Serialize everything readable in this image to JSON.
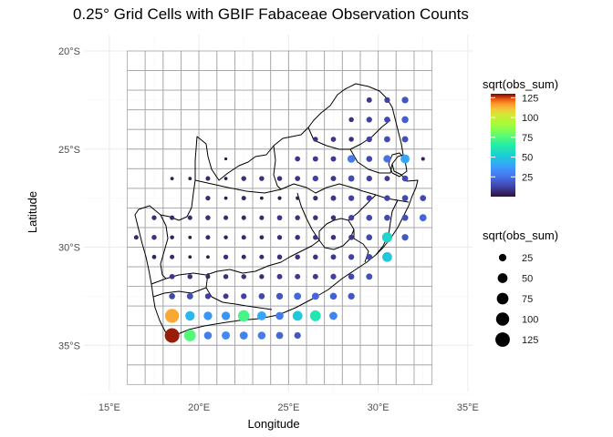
{
  "chart_title": "0.25° Grid Cells with GBIF Fabaceae Observation Counts",
  "chart_data": {
    "type": "map-bubble",
    "title": "0.25° Grid Cells with GBIF Fabaceae Observation Counts",
    "xlabel": "Longitude",
    "ylabel": "Latitude",
    "x_ticks": [
      "15°E",
      "20°E",
      "25°E",
      "30°E",
      "35°E"
    ],
    "x_tick_values": [
      15,
      20,
      25,
      30,
      35
    ],
    "y_ticks": [
      "20°S",
      "25°S",
      "30°S",
      "35°S"
    ],
    "y_tick_values": [
      -20,
      -25,
      -30,
      -35
    ],
    "xlim": [
      14,
      35.5
    ],
    "ylim": [
      -37.5,
      -19.5
    ],
    "grid_extent": {
      "lon": [
        16,
        33
      ],
      "lat": [
        -37,
        -20
      ]
    },
    "grid_step_deg": 1,
    "color_legend": {
      "title": "sqrt(obs_sum)",
      "ticks": [
        25,
        50,
        75,
        100,
        125
      ],
      "range": [
        0,
        130
      ],
      "colormap": "turbo"
    },
    "size_legend": {
      "title": "sqrt(obs_sum)",
      "values": [
        25,
        50,
        75,
        100,
        125
      ]
    },
    "points_note": "Each point is centered on a grid cell [lon, lat, sqrt(obs_sum)]",
    "points": [
      [
        29.5,
        -22.5,
        10
      ],
      [
        30.5,
        -22.5,
        12
      ],
      [
        31.5,
        -22.5,
        18
      ],
      [
        28.5,
        -23.5,
        8
      ],
      [
        29.5,
        -23.5,
        12
      ],
      [
        30.5,
        -23.5,
        14
      ],
      [
        31.5,
        -23.5,
        20
      ],
      [
        26.5,
        -24.5,
        8
      ],
      [
        27.5,
        -24.5,
        9
      ],
      [
        28.5,
        -24.5,
        8
      ],
      [
        29.5,
        -24.5,
        12
      ],
      [
        30.5,
        -24.5,
        15
      ],
      [
        31.5,
        -24.5,
        16
      ],
      [
        21.5,
        -25.5,
        1
      ],
      [
        25.5,
        -25.5,
        9
      ],
      [
        26.5,
        -25.5,
        10
      ],
      [
        27.5,
        -25.5,
        10
      ],
      [
        28.5,
        -25.5,
        28
      ],
      [
        29.5,
        -25.5,
        14
      ],
      [
        30.5,
        -25.5,
        25
      ],
      [
        31.5,
        -25.5,
        40
      ],
      [
        32.5,
        -25.5,
        3
      ],
      [
        18.5,
        -26.5,
        2
      ],
      [
        19.5,
        -26.5,
        2
      ],
      [
        20.5,
        -26.5,
        6
      ],
      [
        21.5,
        -26.5,
        2
      ],
      [
        22.5,
        -26.5,
        8
      ],
      [
        23.5,
        -26.5,
        8
      ],
      [
        24.5,
        -26.5,
        8
      ],
      [
        25.5,
        -26.5,
        9
      ],
      [
        26.5,
        -26.5,
        12
      ],
      [
        27.5,
        -26.5,
        10
      ],
      [
        28.5,
        -26.5,
        15
      ],
      [
        29.5,
        -26.5,
        12
      ],
      [
        30.5,
        -26.5,
        10
      ],
      [
        31.5,
        -26.5,
        14
      ],
      [
        20.5,
        -27.5,
        7
      ],
      [
        21.5,
        -27.5,
        2
      ],
      [
        22.5,
        -27.5,
        6
      ],
      [
        23.5,
        -27.5,
        2
      ],
      [
        24.5,
        -27.5,
        3
      ],
      [
        25.5,
        -27.5,
        3
      ],
      [
        26.5,
        -27.5,
        7
      ],
      [
        27.5,
        -27.5,
        10
      ],
      [
        28.5,
        -27.5,
        12
      ],
      [
        29.5,
        -27.5,
        12
      ],
      [
        30.5,
        -27.5,
        13
      ],
      [
        31.5,
        -27.5,
        14
      ],
      [
        32.5,
        -27.5,
        14
      ],
      [
        17.5,
        -28.5,
        7
      ],
      [
        18.5,
        -28.5,
        6
      ],
      [
        19.5,
        -28.5,
        6
      ],
      [
        20.5,
        -28.5,
        8
      ],
      [
        21.5,
        -28.5,
        6
      ],
      [
        22.5,
        -28.5,
        6
      ],
      [
        23.5,
        -28.5,
        6
      ],
      [
        24.5,
        -28.5,
        9
      ],
      [
        25.5,
        -28.5,
        8
      ],
      [
        26.5,
        -28.5,
        8
      ],
      [
        27.5,
        -28.5,
        8
      ],
      [
        28.5,
        -28.5,
        12
      ],
      [
        29.5,
        -28.5,
        14
      ],
      [
        30.5,
        -28.5,
        14
      ],
      [
        31.5,
        -28.5,
        16
      ],
      [
        32.5,
        -28.5,
        22
      ],
      [
        16.5,
        -29.5,
        6
      ],
      [
        17.5,
        -29.5,
        8
      ],
      [
        18.5,
        -29.5,
        4
      ],
      [
        19.5,
        -29.5,
        2
      ],
      [
        20.5,
        -29.5,
        6
      ],
      [
        21.5,
        -29.5,
        4
      ],
      [
        22.5,
        -29.5,
        6
      ],
      [
        23.5,
        -29.5,
        5
      ],
      [
        24.5,
        -29.5,
        7
      ],
      [
        25.5,
        -29.5,
        8
      ],
      [
        26.5,
        -29.5,
        8
      ],
      [
        27.5,
        -29.5,
        8
      ],
      [
        28.5,
        -29.5,
        10
      ],
      [
        29.5,
        -29.5,
        14
      ],
      [
        30.5,
        -29.5,
        55
      ],
      [
        31.5,
        -29.5,
        18
      ],
      [
        17.5,
        -30.5,
        5
      ],
      [
        18.5,
        -30.5,
        6
      ],
      [
        19.5,
        -30.5,
        2
      ],
      [
        20.5,
        -30.5,
        2
      ],
      [
        21.5,
        -30.5,
        7
      ],
      [
        22.5,
        -30.5,
        6
      ],
      [
        23.5,
        -30.5,
        6
      ],
      [
        24.5,
        -30.5,
        8
      ],
      [
        25.5,
        -30.5,
        8
      ],
      [
        26.5,
        -30.5,
        8
      ],
      [
        27.5,
        -30.5,
        10
      ],
      [
        28.5,
        -30.5,
        12
      ],
      [
        29.5,
        -30.5,
        14
      ],
      [
        30.5,
        -30.5,
        50
      ],
      [
        18.5,
        -31.5,
        9
      ],
      [
        19.5,
        -31.5,
        8
      ],
      [
        20.5,
        -31.5,
        6
      ],
      [
        21.5,
        -31.5,
        8
      ],
      [
        22.5,
        -31.5,
        8
      ],
      [
        23.5,
        -31.5,
        7
      ],
      [
        24.5,
        -31.5,
        10
      ],
      [
        25.5,
        -31.5,
        10
      ],
      [
        26.5,
        -31.5,
        10
      ],
      [
        27.5,
        -31.5,
        12
      ],
      [
        28.5,
        -31.5,
        14
      ],
      [
        29.5,
        -31.5,
        16
      ],
      [
        18.5,
        -32.5,
        14
      ],
      [
        19.5,
        -32.5,
        16
      ],
      [
        20.5,
        -32.5,
        12
      ],
      [
        21.5,
        -32.5,
        10
      ],
      [
        22.5,
        -32.5,
        12
      ],
      [
        23.5,
        -32.5,
        14
      ],
      [
        24.5,
        -32.5,
        18
      ],
      [
        25.5,
        -32.5,
        22
      ],
      [
        26.5,
        -32.5,
        22
      ],
      [
        27.5,
        -32.5,
        20
      ],
      [
        28.5,
        -32.5,
        18
      ],
      [
        18.5,
        -33.5,
        115
      ],
      [
        19.5,
        -33.5,
        45
      ],
      [
        20.5,
        -33.5,
        35
      ],
      [
        21.5,
        -33.5,
        35
      ],
      [
        22.5,
        -33.5,
        72
      ],
      [
        23.5,
        -33.5,
        40
      ],
      [
        24.5,
        -33.5,
        28
      ],
      [
        25.5,
        -33.5,
        50
      ],
      [
        26.5,
        -33.5,
        62
      ],
      [
        27.5,
        -33.5,
        30
      ],
      [
        18.5,
        -34.5,
        128
      ],
      [
        19.5,
        -34.5,
        75
      ],
      [
        20.5,
        -34.5,
        28
      ],
      [
        21.5,
        -34.5,
        32
      ],
      [
        22.5,
        -34.5,
        30
      ],
      [
        23.5,
        -34.5,
        28
      ],
      [
        24.5,
        -34.5,
        22
      ],
      [
        25.5,
        -34.5,
        18
      ]
    ]
  }
}
